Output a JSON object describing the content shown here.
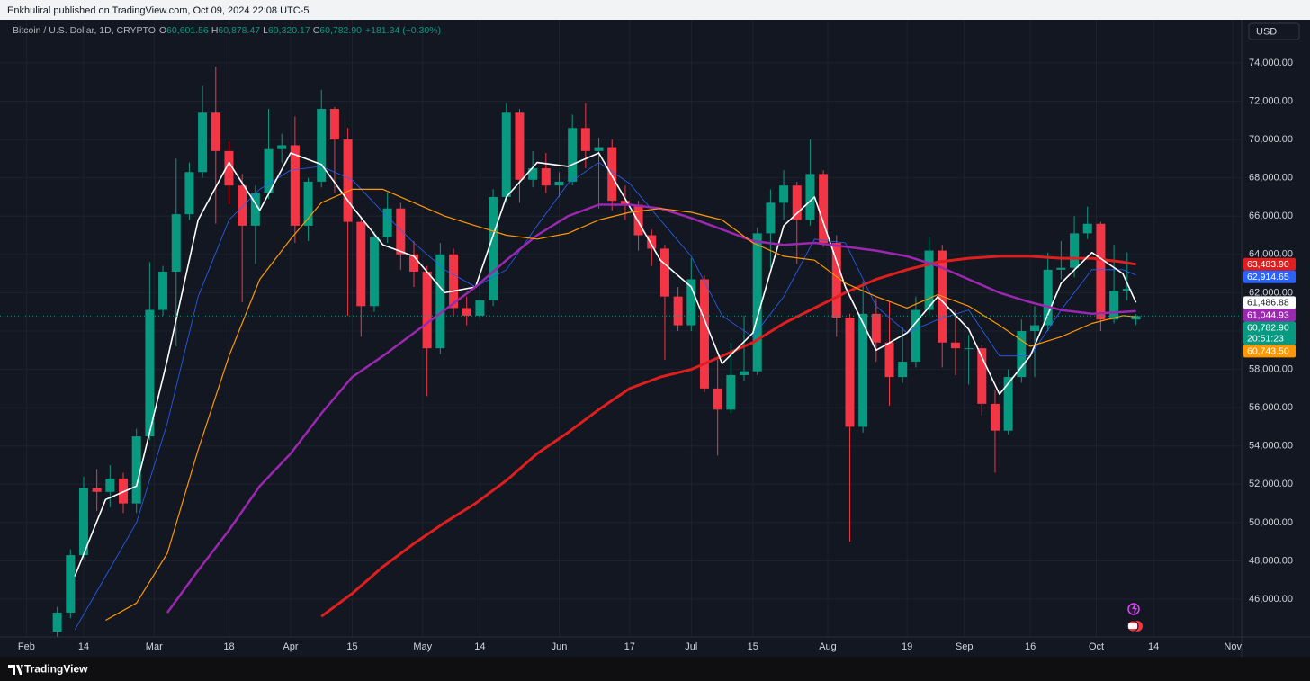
{
  "header": {
    "publisher": "Enkhuliral published on TradingView.com, Oct 09, 2024 22:08 UTC-5"
  },
  "footer": {
    "brand": "TradingView"
  },
  "chart_data": {
    "type": "candlestick",
    "title": "Bitcoin / U.S. Dollar, 1D, CRYPTO",
    "ohlc_readout": [
      {
        "label": "O",
        "value": "60,601.56"
      },
      {
        "label": "H",
        "value": "60,878.47"
      },
      {
        "label": "L",
        "value": "60,320.17"
      },
      {
        "label": "C",
        "value": "60,782.90"
      }
    ],
    "change": "+181.34 (+0.30%)",
    "currency": "USD",
    "countdown": "20:51:23",
    "candles": {
      "up_color": "#089981",
      "down_color": "#f23645",
      "last_label": "60,782.90",
      "dates": [
        "2024-02-08",
        "2024-02-11",
        "2024-02-14",
        "2024-02-17",
        "2024-02-20",
        "2024-02-23",
        "2024-02-26",
        "2024-02-29",
        "2024-03-03",
        "2024-03-06",
        "2024-03-09",
        "2024-03-12",
        "2024-03-15",
        "2024-03-18",
        "2024-03-21",
        "2024-03-24",
        "2024-03-27",
        "2024-03-30",
        "2024-04-02",
        "2024-04-05",
        "2024-04-08",
        "2024-04-11",
        "2024-04-14",
        "2024-04-17",
        "2024-04-20",
        "2024-04-23",
        "2024-04-26",
        "2024-04-29",
        "2024-05-02",
        "2024-05-05",
        "2024-05-08",
        "2024-05-11",
        "2024-05-14",
        "2024-05-17",
        "2024-05-20",
        "2024-05-23",
        "2024-05-26",
        "2024-05-29",
        "2024-06-01",
        "2024-06-04",
        "2024-06-07",
        "2024-06-10",
        "2024-06-13",
        "2024-06-16",
        "2024-06-19",
        "2024-06-22",
        "2024-06-25",
        "2024-06-28",
        "2024-07-01",
        "2024-07-04",
        "2024-07-07",
        "2024-07-10",
        "2024-07-13",
        "2024-07-16",
        "2024-07-19",
        "2024-07-22",
        "2024-07-25",
        "2024-07-28",
        "2024-07-31",
        "2024-08-03",
        "2024-08-06",
        "2024-08-09",
        "2024-08-12",
        "2024-08-15",
        "2024-08-18",
        "2024-08-21",
        "2024-08-24",
        "2024-08-27",
        "2024-08-30",
        "2024-09-02",
        "2024-09-05",
        "2024-09-08",
        "2024-09-11",
        "2024-09-14",
        "2024-09-17",
        "2024-09-20",
        "2024-09-23",
        "2024-09-26",
        "2024-09-29",
        "2024-10-02",
        "2024-10-05",
        "2024-10-08",
        "2024-10-10"
      ],
      "ohlc": [
        [
          44300,
          45600,
          44000,
          45300
        ],
        [
          45300,
          48600,
          45000,
          48300
        ],
        [
          48300,
          52400,
          48100,
          51800
        ],
        [
          51800,
          52800,
          50600,
          51600
        ],
        [
          51600,
          53000,
          50800,
          52300
        ],
        [
          52300,
          52600,
          50500,
          51000
        ],
        [
          51000,
          54900,
          50500,
          54500
        ],
        [
          54500,
          63600,
          54300,
          61100
        ],
        [
          61100,
          63400,
          60800,
          63100
        ],
        [
          63100,
          69000,
          59200,
          66100
        ],
        [
          66100,
          68800,
          65800,
          68300
        ],
        [
          68300,
          72800,
          68000,
          71400
        ],
        [
          71400,
          73800,
          65600,
          69400
        ],
        [
          69400,
          69900,
          66600,
          67600
        ],
        [
          67600,
          68200,
          61500,
          65500
        ],
        [
          65500,
          67600,
          63500,
          67200
        ],
        [
          67200,
          71600,
          66900,
          69500
        ],
        [
          69500,
          70300,
          68800,
          69700
        ],
        [
          69700,
          71200,
          64600,
          65500
        ],
        [
          65500,
          68000,
          64700,
          67800
        ],
        [
          67800,
          72600,
          67500,
          71600
        ],
        [
          71600,
          71700,
          67200,
          70000
        ],
        [
          70000,
          70600,
          60800,
          65700
        ],
        [
          65700,
          66000,
          59700,
          61300
        ],
        [
          61300,
          65200,
          61000,
          64900
        ],
        [
          64900,
          67200,
          64600,
          66400
        ],
        [
          66400,
          66700,
          63200,
          64000
        ],
        [
          64000,
          64700,
          62300,
          63100
        ],
        [
          63100,
          63400,
          56600,
          59100
        ],
        [
          59100,
          64600,
          58800,
          64000
        ],
        [
          64000,
          64300,
          60800,
          61200
        ],
        [
          61200,
          61800,
          60300,
          60800
        ],
        [
          60800,
          63000,
          60500,
          61600
        ],
        [
          61600,
          67400,
          61300,
          67000
        ],
        [
          67000,
          71900,
          66700,
          71400
        ],
        [
          71400,
          71600,
          66700,
          67900
        ],
        [
          67900,
          69400,
          67500,
          68500
        ],
        [
          68500,
          69300,
          67200,
          67600
        ],
        [
          67600,
          68300,
          67000,
          67800
        ],
        [
          67800,
          71300,
          67600,
          70600
        ],
        [
          70600,
          71900,
          68500,
          69400
        ],
        [
          69400,
          70100,
          66400,
          69600
        ],
        [
          69600,
          70000,
          66300,
          66800
        ],
        [
          66800,
          67600,
          65800,
          66600
        ],
        [
          66600,
          66800,
          64200,
          65000
        ],
        [
          65000,
          65300,
          63400,
          64300
        ],
        [
          64300,
          64500,
          58500,
          61800
        ],
        [
          61800,
          62300,
          60000,
          60300
        ],
        [
          60300,
          63800,
          60000,
          62700
        ],
        [
          62700,
          62900,
          56800,
          57000
        ],
        [
          57000,
          58500,
          53500,
          55900
        ],
        [
          55900,
          59400,
          55700,
          57700
        ],
        [
          57700,
          60800,
          57400,
          57900
        ],
        [
          57900,
          65400,
          57700,
          65100
        ],
        [
          65100,
          67400,
          63300,
          66700
        ],
        [
          66700,
          68400,
          65800,
          67600
        ],
        [
          67600,
          67800,
          63500,
          65800
        ],
        [
          65800,
          70000,
          65500,
          68200
        ],
        [
          68200,
          68400,
          64400,
          64600
        ],
        [
          64600,
          65000,
          59700,
          60700
        ],
        [
          60700,
          60900,
          49000,
          55000
        ],
        [
          55000,
          62600,
          54700,
          60900
        ],
        [
          60900,
          61700,
          58400,
          59400
        ],
        [
          59400,
          61500,
          56100,
          57600
        ],
        [
          57600,
          60200,
          57300,
          58400
        ],
        [
          58400,
          61800,
          58100,
          61100
        ],
        [
          61100,
          64900,
          60800,
          64200
        ],
        [
          64200,
          64500,
          58100,
          59400
        ],
        [
          59400,
          61100,
          57700,
          59100
        ],
        [
          59100,
          59800,
          57200,
          59100
        ],
        [
          59100,
          59300,
          55600,
          56200
        ],
        [
          56200,
          56900,
          52600,
          54800
        ],
        [
          54800,
          58000,
          54600,
          57600
        ],
        [
          57600,
          60600,
          57300,
          60000
        ],
        [
          60000,
          61300,
          57600,
          60300
        ],
        [
          60300,
          64100,
          60000,
          63200
        ],
        [
          63200,
          64700,
          62700,
          63300
        ],
        [
          63300,
          66000,
          62800,
          65100
        ],
        [
          65100,
          66500,
          64800,
          65600
        ],
        [
          65600,
          65700,
          60000,
          60600
        ],
        [
          60600,
          64500,
          60400,
          62100
        ],
        [
          62100,
          64100,
          61600,
          62200
        ],
        [
          60601.56,
          60878.47,
          60320.17,
          60782.9
        ]
      ]
    },
    "x": [
      "2024-02-12",
      "2024-02-19",
      "2024-02-26",
      "2024-03-04",
      "2024-03-11",
      "2024-03-18",
      "2024-03-25",
      "2024-04-01",
      "2024-04-08",
      "2024-04-15",
      "2024-04-22",
      "2024-04-29",
      "2024-05-06",
      "2024-05-13",
      "2024-05-20",
      "2024-05-27",
      "2024-06-03",
      "2024-06-10",
      "2024-06-17",
      "2024-06-24",
      "2024-07-01",
      "2024-07-08",
      "2024-07-15",
      "2024-07-22",
      "2024-07-29",
      "2024-08-05",
      "2024-08-12",
      "2024-08-19",
      "2024-08-26",
      "2024-09-02",
      "2024-09-09",
      "2024-09-16",
      "2024-09-23",
      "2024-09-30",
      "2024-10-07",
      "2024-10-10"
    ],
    "series": [
      {
        "color": "#e01e1e",
        "last_label": "63,483.90",
        "values": [
          null,
          null,
          null,
          null,
          null,
          null,
          null,
          null,
          45100,
          46300,
          47700,
          48900,
          50000,
          51000,
          52200,
          53600,
          54700,
          55900,
          57000,
          57600,
          58000,
          58700,
          59400,
          60400,
          61200,
          62000,
          62700,
          63200,
          63600,
          63800,
          63900,
          63900,
          63800,
          63800,
          63600,
          63483.9
        ]
      },
      {
        "color": "#2962ff",
        "last_label": "62,914.65",
        "values": [
          44400,
          47200,
          50000,
          55200,
          61800,
          65800,
          67400,
          68400,
          68600,
          67900,
          66200,
          64600,
          63200,
          62300,
          63200,
          65500,
          67700,
          68800,
          67700,
          65800,
          63900,
          60800,
          59700,
          61800,
          64800,
          64600,
          61300,
          59900,
          60600,
          61100,
          58700,
          58700,
          61100,
          63200,
          63200,
          62914.65
        ]
      },
      {
        "color": "#ffffff",
        "last_label": "61,486.88",
        "values": [
          47200,
          51200,
          51900,
          58500,
          65800,
          68800,
          66300,
          69300,
          68700,
          66500,
          64500,
          63900,
          62000,
          62300,
          67000,
          68800,
          68600,
          69300,
          66500,
          63700,
          62300,
          58300,
          59900,
          65500,
          67000,
          62300,
          59000,
          59900,
          61800,
          60100,
          56700,
          58700,
          62500,
          64100,
          63000,
          61486.88
        ]
      },
      {
        "color": "#9c27b0",
        "last_label": "61,044.93",
        "values": [
          null,
          null,
          null,
          45300,
          47500,
          49600,
          51900,
          53600,
          55700,
          57600,
          58700,
          59900,
          61100,
          62300,
          63700,
          65000,
          66000,
          66600,
          66600,
          66400,
          65900,
          65300,
          64700,
          64500,
          64600,
          64400,
          64200,
          63900,
          63400,
          62700,
          62000,
          61500,
          61100,
          60900,
          61000,
          61044.93
        ]
      },
      {
        "color": "#ff9800",
        "last_label": "60,743.50",
        "values": [
          null,
          44900,
          45800,
          48400,
          53800,
          58700,
          62700,
          64800,
          66700,
          67400,
          67400,
          66700,
          66000,
          65500,
          65000,
          64800,
          65100,
          65800,
          66200,
          66400,
          66200,
          65800,
          64600,
          63900,
          63700,
          62500,
          61800,
          61200,
          61900,
          61300,
          60300,
          59200,
          59700,
          60400,
          60800,
          60743.5
        ]
      }
    ],
    "xlim": [
      "2024-01-26",
      "2024-11-03"
    ],
    "xticks": [
      {
        "value": "2024-02-01",
        "label": "Feb"
      },
      {
        "value": "2024-02-14",
        "label": "14"
      },
      {
        "value": "2024-03-01",
        "label": "Mar"
      },
      {
        "value": "2024-03-18",
        "label": "18"
      },
      {
        "value": "2024-04-01",
        "label": "Apr"
      },
      {
        "value": "2024-04-15",
        "label": "15"
      },
      {
        "value": "2024-05-01",
        "label": "May"
      },
      {
        "value": "2024-05-14",
        "label": "14"
      },
      {
        "value": "2024-06-01",
        "label": "Jun"
      },
      {
        "value": "2024-06-17",
        "label": "17"
      },
      {
        "value": "2024-07-01",
        "label": "Jul"
      },
      {
        "value": "2024-07-15",
        "label": "15"
      },
      {
        "value": "2024-08-01",
        "label": "Aug"
      },
      {
        "value": "2024-08-19",
        "label": "19"
      },
      {
        "value": "2024-09-01",
        "label": "Sep"
      },
      {
        "value": "2024-09-16",
        "label": "16"
      },
      {
        "value": "2024-10-01",
        "label": "Oct"
      },
      {
        "value": "2024-10-14",
        "label": "14"
      },
      {
        "value": "2024-11-01",
        "label": "Nov"
      }
    ],
    "ylim": [
      44030,
      76250
    ],
    "yticks": [
      {
        "value": 46000,
        "label": "46,000.00"
      },
      {
        "value": 48000,
        "label": "48,000.00"
      },
      {
        "value": 50000,
        "label": "50,000.00"
      },
      {
        "value": 52000,
        "label": "52,000.00"
      },
      {
        "value": 54000,
        "label": "54,000.00"
      },
      {
        "value": 56000,
        "label": "56,000.00"
      },
      {
        "value": 58000,
        "label": "58,000.00"
      },
      {
        "value": 60000,
        "label": "60,000.00"
      },
      {
        "value": 62000,
        "label": "62,000.00"
      },
      {
        "value": 64000,
        "label": "64,000.00"
      },
      {
        "value": 66000,
        "label": "66,000.00"
      },
      {
        "value": 68000,
        "label": "68,000.00"
      },
      {
        "value": 70000,
        "label": "70,000.00"
      },
      {
        "value": 72000,
        "label": "72,000.00"
      },
      {
        "value": 74000,
        "label": "74,000.00"
      }
    ],
    "grid": true
  }
}
